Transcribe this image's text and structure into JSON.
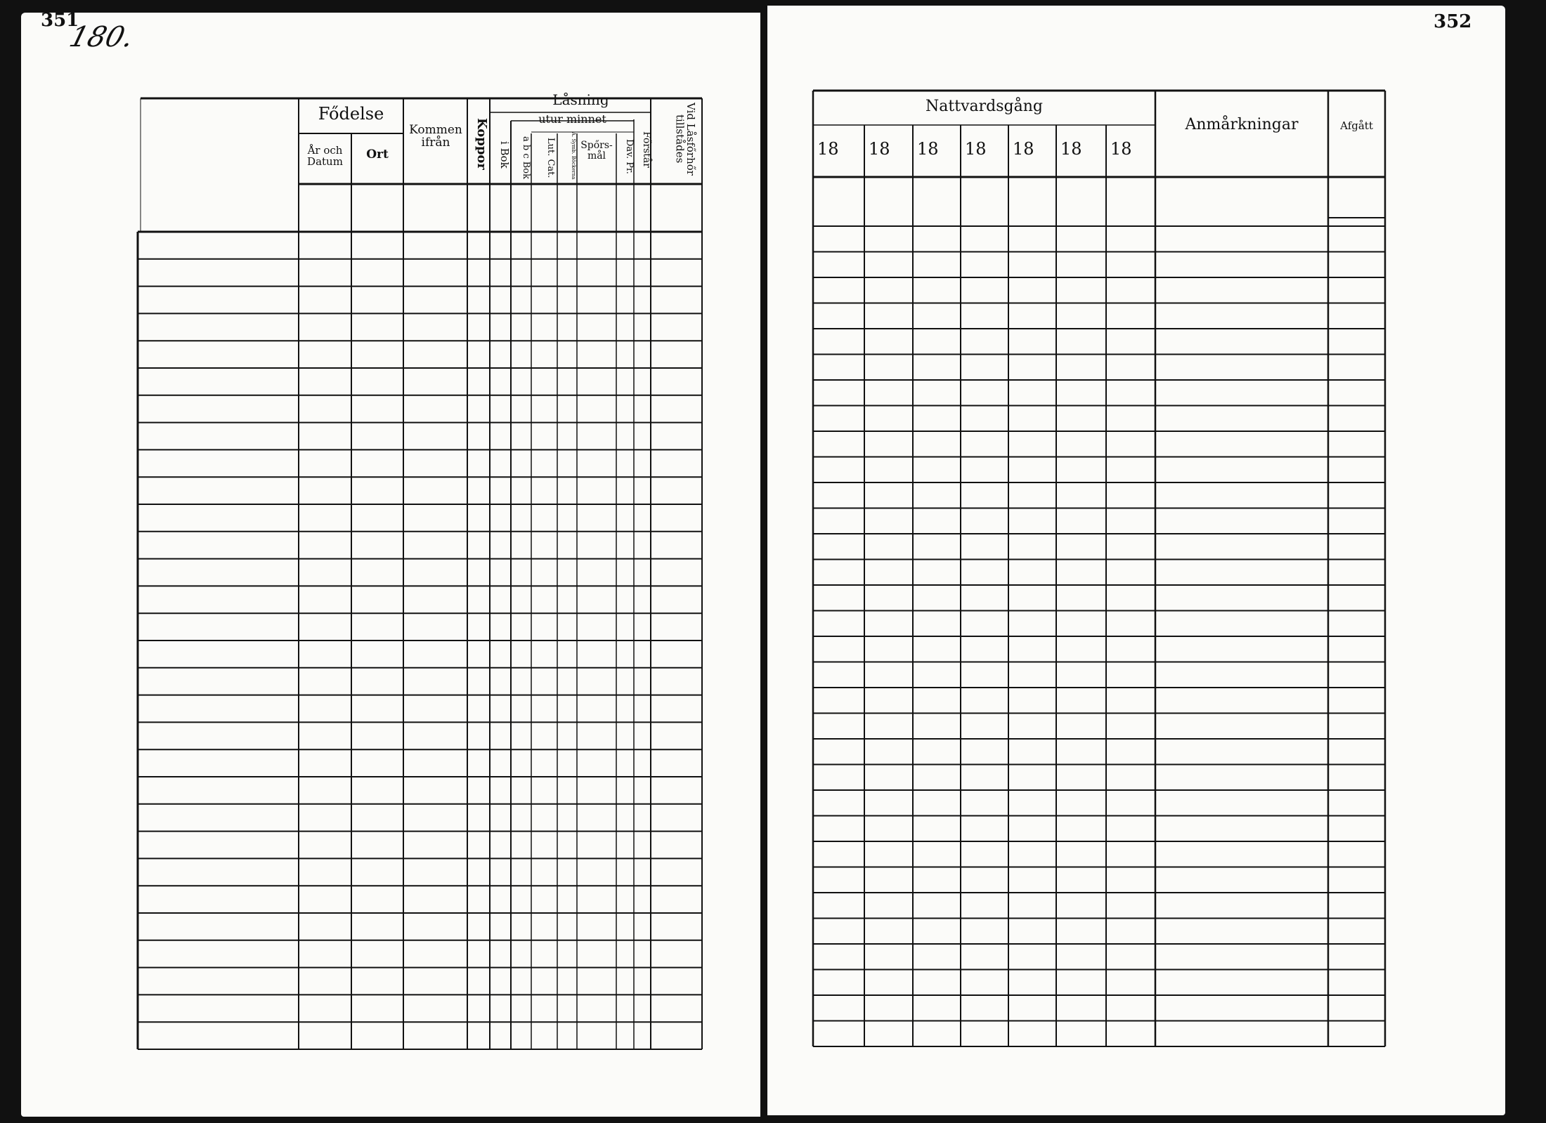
{
  "left_page": {
    "page_number": "351",
    "handwritten_note": "180.",
    "headers": {
      "fodelse": "Fődelse",
      "ar_och_datum": "År och Datum",
      "ort": "Ort",
      "kommen_ifran": "Kommen ifrån",
      "koppor": "Koppor",
      "lasning": "Låsning",
      "i_bok": "i Bok",
      "utur_minnet": "utur minnet",
      "abc_bok": "a b c Bok",
      "lut_cat": "Lut. Cat.",
      "a_symb": "A. Symb. Böckerna",
      "sporsmal": "Spőrs-mål",
      "dav_pr": "Dav. Pr.",
      "forstar": "Főrstår",
      "vid_lasforhor": "Vid Låsfőrhőr tillstådes"
    }
  },
  "right_page": {
    "page_number": "352",
    "headers": {
      "nattvardsgang": "Nattvardsgång",
      "years": [
        "18",
        "18",
        "18",
        "18",
        "18",
        "18",
        "18"
      ],
      "anmarkningar": "Anmårkningar",
      "afgatt": "Afgått"
    }
  }
}
